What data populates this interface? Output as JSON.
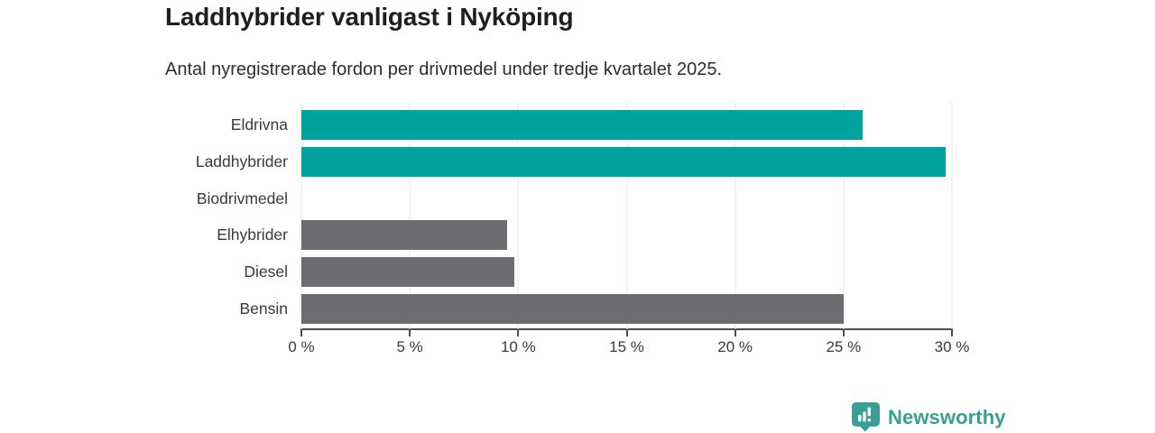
{
  "chart_data": {
    "type": "bar",
    "orientation": "horizontal",
    "title": "Laddhybrider vanligast i Nyköping",
    "subtitle": "Antal nyregistrerade fordon per drivmedel under tredje kvartalet 2025.",
    "categories": [
      "Eldrivna",
      "Laddhybrider",
      "Biodrivmedel",
      "Elhybrider",
      "Diesel",
      "Bensin"
    ],
    "values": [
      25.9,
      29.7,
      0,
      9.5,
      9.8,
      25.0
    ],
    "unit": "%",
    "xlim": [
      0,
      30
    ],
    "xtick_labels": [
      "0 %",
      "5 %",
      "10 %",
      "15 %",
      "20 %",
      "25 %",
      "30 %"
    ],
    "grid": "vertical",
    "legend": false,
    "highlighted_categories": [
      "Eldrivna",
      "Laddhybrider"
    ],
    "bar_colors": [
      "#00a39b",
      "#00a39b",
      "#6d6d71",
      "#6d6d71",
      "#6d6d71",
      "#6d6d71"
    ]
  },
  "colors": {
    "highlight_teal": "#00a39b",
    "neutral_gray": "#6d6d71",
    "gridline": "#e4e4e4",
    "axis": "#4c4c4c",
    "logo_teal": "#3a9e94"
  },
  "footer": {
    "brand": "Newsworthy",
    "logo_icon": "bar-chart-speech-bubble-icon"
  }
}
